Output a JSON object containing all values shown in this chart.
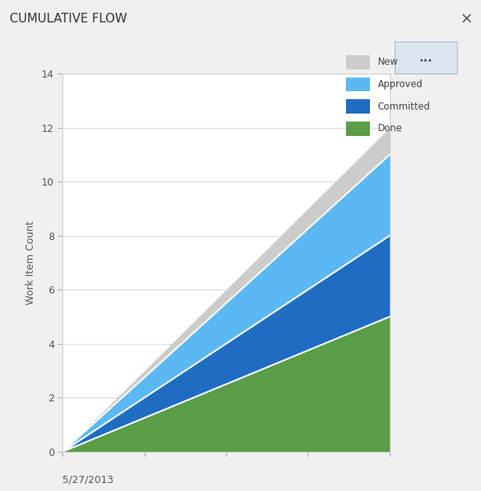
{
  "title": "CUMULATIVE FLOW",
  "xlabel": "5/27/2013",
  "ylabel": "Work Item Count",
  "ylim": [
    0,
    14
  ],
  "xlim": [
    0,
    1
  ],
  "x": [
    0,
    1
  ],
  "done": [
    0,
    5
  ],
  "committed": [
    0,
    8
  ],
  "approved": [
    0,
    11
  ],
  "new_total": [
    0,
    12
  ],
  "color_new": "#cccccc",
  "color_approved": "#5bb8f5",
  "color_committed": "#1f6dc2",
  "color_done": "#5a9e47",
  "legend_labels": [
    "New",
    "Approved",
    "Committed",
    "Done"
  ],
  "background_color": "#f0f0f0",
  "plot_bg_color": "#ffffff",
  "title_fontsize": 11,
  "label_fontsize": 9,
  "tick_fontsize": 9,
  "border_color": "#cccccc",
  "header_color": "#e8e8e8"
}
